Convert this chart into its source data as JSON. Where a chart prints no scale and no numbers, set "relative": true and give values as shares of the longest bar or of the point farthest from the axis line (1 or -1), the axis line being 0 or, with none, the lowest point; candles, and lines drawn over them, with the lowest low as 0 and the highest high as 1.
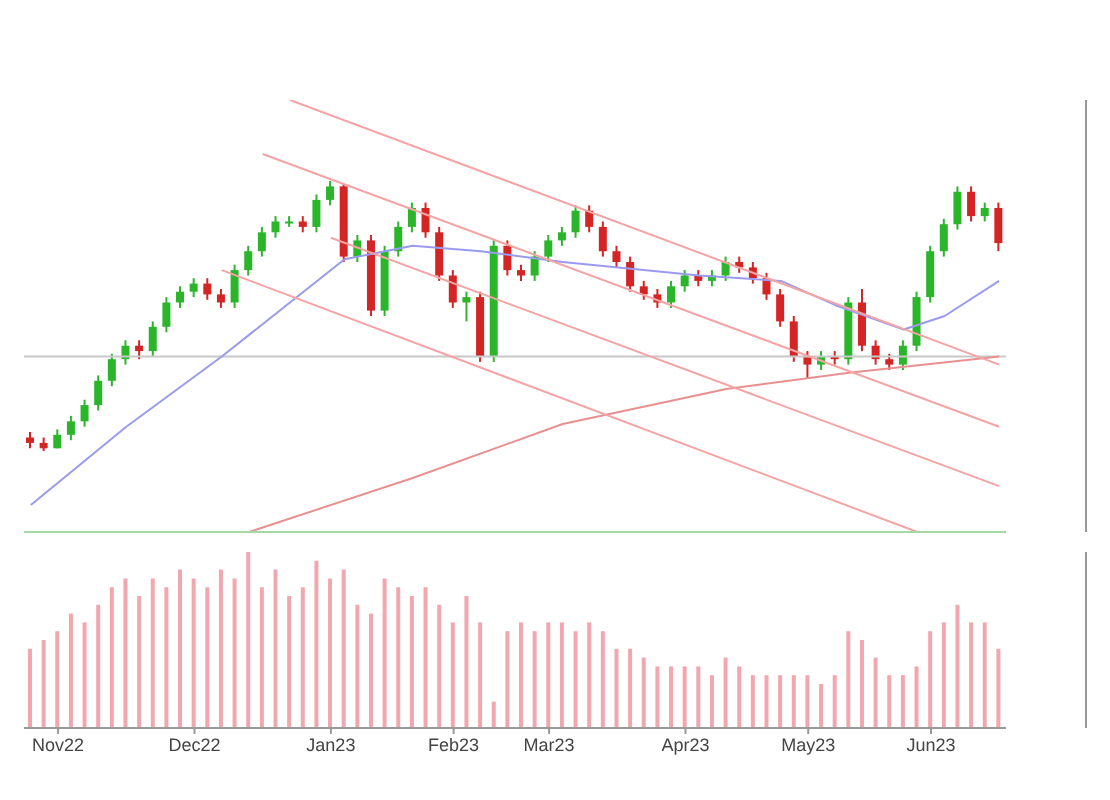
{
  "chart_data": [
    {
      "type": "candlestick",
      "relative": true,
      "tick_labels": false,
      "categories": [
        null,
        null,
        null,
        null,
        null,
        null,
        null,
        null,
        null,
        null,
        null,
        null,
        null,
        null,
        null,
        null,
        null,
        null,
        null,
        null,
        null,
        null,
        null,
        null,
        null,
        null,
        null,
        null,
        null,
        null,
        null,
        null,
        null,
        null,
        null,
        null,
        null,
        null,
        null,
        null,
        null,
        null,
        null,
        null,
        null,
        null,
        null,
        null,
        null,
        null,
        null,
        null,
        null,
        null,
        null,
        null,
        null,
        null,
        null,
        null,
        null,
        null,
        null,
        null,
        null,
        null,
        null,
        null,
        null,
        null,
        null,
        null
      ],
      "ohlc": [
        [
          0.05,
          0.07,
          0.01,
          0.03
        ],
        [
          0.03,
          0.05,
          0,
          0.01
        ],
        [
          0.01,
          0.08,
          0.01,
          0.06
        ],
        [
          0.06,
          0.13,
          0.04,
          0.11
        ],
        [
          0.11,
          0.19,
          0.09,
          0.17
        ],
        [
          0.17,
          0.28,
          0.15,
          0.26
        ],
        [
          0.26,
          0.36,
          0.24,
          0.34
        ],
        [
          0.34,
          0.41,
          0.32,
          0.39
        ],
        [
          0.39,
          0.41,
          0.34,
          0.37
        ],
        [
          0.37,
          0.48,
          0.35,
          0.46
        ],
        [
          0.46,
          0.57,
          0.44,
          0.55
        ],
        [
          0.55,
          0.61,
          0.53,
          0.59
        ],
        [
          0.59,
          0.64,
          0.57,
          0.62
        ],
        [
          0.62,
          0.64,
          0.56,
          0.58
        ],
        [
          0.58,
          0.6,
          0.53,
          0.55
        ],
        [
          0.55,
          0.69,
          0.53,
          0.67
        ],
        [
          0.67,
          0.76,
          0.65,
          0.74
        ],
        [
          0.74,
          0.83,
          0.72,
          0.81
        ],
        [
          0.81,
          0.87,
          0.79,
          0.85
        ],
        [
          0.85,
          0.87,
          0.83,
          0.85
        ],
        [
          0.85,
          0.87,
          0.81,
          0.83
        ],
        [
          0.83,
          0.95,
          0.81,
          0.93
        ],
        [
          0.93,
          1,
          0.91,
          0.98
        ],
        [
          0.98,
          0.99,
          0.7,
          0.72
        ],
        [
          0.72,
          0.8,
          0.7,
          0.78
        ],
        [
          0.78,
          0.8,
          0.5,
          0.52
        ],
        [
          0.52,
          0.76,
          0.5,
          0.74
        ],
        [
          0.74,
          0.85,
          0.72,
          0.83
        ],
        [
          0.83,
          0.92,
          0.81,
          0.9
        ],
        [
          0.9,
          0.92,
          0.79,
          0.81
        ],
        [
          0.81,
          0.83,
          0.63,
          0.65
        ],
        [
          0.65,
          0.67,
          0.53,
          0.55
        ],
        [
          0.55,
          0.59,
          0.48,
          0.57
        ],
        [
          0.57,
          0.59,
          0.33,
          0.35
        ],
        [
          0.35,
          0.78,
          0.33,
          0.76
        ],
        [
          0.76,
          0.78,
          0.65,
          0.67
        ],
        [
          0.67,
          0.69,
          0.63,
          0.65
        ],
        [
          0.65,
          0.74,
          0.63,
          0.72
        ],
        [
          0.72,
          0.8,
          0.7,
          0.78
        ],
        [
          0.78,
          0.83,
          0.76,
          0.81
        ],
        [
          0.81,
          0.91,
          0.79,
          0.89
        ],
        [
          0.89,
          0.91,
          0.81,
          0.83
        ],
        [
          0.83,
          0.85,
          0.72,
          0.74
        ],
        [
          0.74,
          0.76,
          0.68,
          0.7
        ],
        [
          0.7,
          0.72,
          0.59,
          0.61
        ],
        [
          0.61,
          0.63,
          0.56,
          0.58
        ],
        [
          0.58,
          0.6,
          0.53,
          0.55
        ],
        [
          0.55,
          0.63,
          0.53,
          0.61
        ],
        [
          0.61,
          0.67,
          0.59,
          0.65
        ],
        [
          0.65,
          0.67,
          0.61,
          0.63
        ],
        [
          0.63,
          0.67,
          0.61,
          0.65
        ],
        [
          0.65,
          0.72,
          0.63,
          0.7
        ],
        [
          0.7,
          0.72,
          0.66,
          0.68
        ],
        [
          0.68,
          0.7,
          0.62,
          0.64
        ],
        [
          0.64,
          0.66,
          0.56,
          0.58
        ],
        [
          0.58,
          0.6,
          0.46,
          0.48
        ],
        [
          0.48,
          0.5,
          0.33,
          0.35
        ],
        [
          0.35,
          0.37,
          0.27,
          0.32
        ],
        [
          0.32,
          0.37,
          0.3,
          0.35
        ],
        [
          0.35,
          0.37,
          0.32,
          0.34
        ],
        [
          0.34,
          0.57,
          0.32,
          0.55
        ],
        [
          0.55,
          0.6,
          0.37,
          0.39
        ],
        [
          0.39,
          0.41,
          0.32,
          0.34
        ],
        [
          0.34,
          0.36,
          0.3,
          0.32
        ],
        [
          0.32,
          0.41,
          0.3,
          0.39
        ],
        [
          0.39,
          0.59,
          0.37,
          0.57
        ],
        [
          0.57,
          0.76,
          0.55,
          0.74
        ],
        [
          0.74,
          0.86,
          0.72,
          0.84
        ],
        [
          0.84,
          0.98,
          0.82,
          0.96
        ],
        [
          0.96,
          0.98,
          0.85,
          0.87
        ],
        [
          0.87,
          0.92,
          0.85,
          0.9
        ],
        [
          0.9,
          0.92,
          0.74,
          0.77
        ]
      ],
      "series": [
        {
          "type": "line",
          "color": "#9a9aee",
          "values": [
            -0.2,
            null,
            null,
            null,
            null,
            null,
            null,
            0.09,
            null,
            null,
            null,
            null,
            null,
            null,
            0.35,
            null,
            null,
            null,
            null,
            null,
            null,
            null,
            null,
            0.71,
            null,
            null,
            null,
            null,
            0.76,
            null,
            null,
            null,
            null,
            0.74,
            null,
            null,
            null,
            null,
            null,
            0.7,
            null,
            null,
            null,
            null,
            null,
            null,
            null,
            null,
            null,
            0.65,
            null,
            null,
            null,
            null,
            null,
            0.63,
            null,
            null,
            null,
            0.54,
            null,
            null,
            null,
            null,
            0.45,
            null,
            null,
            0.5,
            null,
            null,
            null,
            0.63
          ]
        },
        {
          "type": "line",
          "color": "#e89090",
          "values": [
            null,
            null,
            null,
            null,
            null,
            null,
            null,
            null,
            null,
            null,
            null,
            null,
            null,
            null,
            null,
            null,
            -0.3,
            null,
            null,
            null,
            null,
            null,
            null,
            null,
            null,
            null,
            null,
            null,
            -0.1,
            null,
            null,
            null,
            null,
            null,
            null,
            null,
            null,
            null,
            null,
            0.1,
            null,
            null,
            null,
            null,
            null,
            null,
            null,
            null,
            null,
            null,
            null,
            0.23,
            null,
            null,
            null,
            null,
            null,
            null,
            null,
            null,
            0.29,
            null,
            null,
            null,
            null,
            null,
            null,
            null,
            null,
            null,
            null,
            0.35
          ]
        },
        {
          "type": "line",
          "color": "#f4a4a4",
          "values": [
            null,
            null,
            null,
            null,
            null,
            null,
            null,
            null,
            null,
            null,
            null,
            null,
            null,
            null,
            null,
            null,
            null,
            null,
            null,
            1.3,
            null,
            null,
            null,
            null,
            null,
            null,
            null,
            null,
            null,
            null,
            null,
            null,
            null,
            null,
            null,
            null,
            null,
            null,
            null,
            null,
            null,
            null,
            null,
            null,
            null,
            null,
            null,
            null,
            null,
            null,
            null,
            null,
            null,
            null,
            null,
            null,
            null,
            null,
            null,
            null,
            null,
            null,
            null,
            null,
            null,
            null,
            null,
            null,
            null,
            null,
            null,
            0.32
          ]
        },
        {
          "type": "line",
          "color": "#f4a4a4",
          "values": [
            null,
            null,
            null,
            null,
            null,
            null,
            null,
            null,
            null,
            null,
            null,
            null,
            null,
            null,
            null,
            null,
            null,
            1.1,
            null,
            null,
            null,
            null,
            null,
            null,
            null,
            null,
            null,
            null,
            null,
            null,
            null,
            null,
            null,
            null,
            null,
            null,
            null,
            null,
            null,
            null,
            null,
            null,
            null,
            null,
            null,
            null,
            null,
            null,
            null,
            null,
            null,
            null,
            null,
            null,
            null,
            null,
            null,
            null,
            null,
            null,
            null,
            null,
            null,
            null,
            null,
            null,
            null,
            null,
            null,
            null,
            null,
            0.09
          ]
        },
        {
          "type": "line",
          "color": "#f4a4a4",
          "values": [
            null,
            null,
            null,
            null,
            null,
            null,
            null,
            null,
            null,
            null,
            null,
            null,
            null,
            null,
            null,
            null,
            null,
            null,
            null,
            null,
            null,
            null,
            0.79,
            null,
            null,
            null,
            null,
            null,
            null,
            null,
            null,
            null,
            null,
            null,
            null,
            null,
            null,
            null,
            null,
            null,
            null,
            null,
            null,
            null,
            null,
            null,
            null,
            null,
            null,
            null,
            null,
            null,
            null,
            null,
            null,
            null,
            null,
            null,
            null,
            null,
            null,
            null,
            null,
            null,
            null,
            null,
            null,
            null,
            null,
            null,
            null,
            -0.13
          ]
        },
        {
          "type": "line",
          "color": "#f4a4a4",
          "values": [
            null,
            null,
            null,
            null,
            null,
            null,
            null,
            null,
            null,
            null,
            null,
            null,
            null,
            null,
            0.67,
            null,
            null,
            null,
            null,
            null,
            null,
            null,
            null,
            null,
            null,
            null,
            null,
            null,
            null,
            null,
            null,
            null,
            null,
            null,
            null,
            null,
            null,
            null,
            null,
            null,
            null,
            null,
            null,
            null,
            null,
            null,
            null,
            null,
            null,
            null,
            null,
            null,
            null,
            null,
            null,
            null,
            null,
            null,
            null,
            null,
            null,
            null,
            null,
            null,
            null,
            -0.3,
            null,
            null,
            null,
            null,
            null,
            null
          ]
        }
      ],
      "ref_lines": [
        {
          "axis": "y",
          "value": 0.35,
          "color": "#c8c8c8"
        }
      ]
    },
    {
      "type": "bar",
      "relative": true,
      "tick_labels": "x",
      "categories": [
        null,
        null,
        "Nov22",
        null,
        null,
        null,
        null,
        null,
        null,
        null,
        null,
        null,
        "Dec22",
        null,
        null,
        null,
        null,
        null,
        null,
        null,
        null,
        null,
        "Jan23",
        null,
        null,
        null,
        null,
        null,
        null,
        null,
        null,
        "Feb23",
        null,
        null,
        null,
        null,
        null,
        null,
        "Mar23",
        null,
        null,
        null,
        null,
        null,
        null,
        null,
        null,
        null,
        "Apr23",
        null,
        null,
        null,
        null,
        null,
        null,
        null,
        null,
        "May23",
        null,
        null,
        null,
        null,
        null,
        null,
        null,
        null,
        "Jun23",
        null,
        null,
        null,
        null,
        null
      ],
      "series": [
        {
          "color": "#f2a6ae",
          "values": [
            0.45,
            0.5,
            0.55,
            0.65,
            0.6,
            0.7,
            0.8,
            0.85,
            0.75,
            0.85,
            0.8,
            0.9,
            0.85,
            0.8,
            0.9,
            0.85,
            1,
            0.8,
            0.9,
            0.75,
            0.8,
            0.95,
            0.85,
            0.9,
            0.7,
            0.65,
            0.85,
            0.8,
            0.75,
            0.8,
            0.7,
            0.6,
            0.75,
            0.6,
            0.15,
            0.55,
            0.6,
            0.55,
            0.6,
            0.6,
            0.55,
            0.6,
            0.55,
            0.45,
            0.45,
            0.4,
            0.35,
            0.35,
            0.35,
            0.35,
            0.3,
            0.4,
            0.35,
            0.3,
            0.3,
            0.3,
            0.3,
            0.3,
            0.25,
            0.3,
            0.55,
            0.5,
            0.4,
            0.3,
            0.3,
            0.35,
            0.55,
            0.6,
            0.7,
            0.6,
            0.6,
            0.45
          ]
        }
      ]
    }
  ]
}
